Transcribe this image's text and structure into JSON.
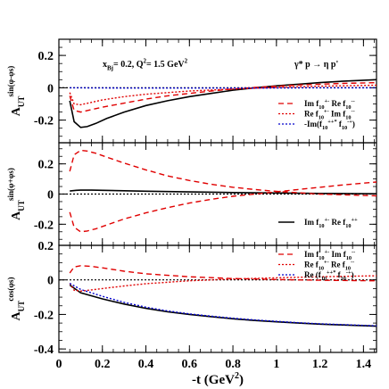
{
  "chart_data": {
    "type": "line",
    "xlabel": "-t (GeV²)",
    "xlim": [
      0,
      1.46
    ],
    "x_ticks": [
      "0",
      "0.2",
      "0.4",
      "0.6",
      "0.8",
      "1",
      "1.2",
      "1.4"
    ],
    "panels": [
      {
        "ylabel": "A_UT^{sin(φ-φs)}",
        "ylim": [
          -0.34,
          0.3
        ],
        "y_ticks": [
          "0.2",
          "0",
          "-0.2"
        ],
        "annotations": [
          "x_Bj= 0.2,  Q²= 1.5 GeV²",
          "γ* p → η p'"
        ],
        "series": [
          {
            "name": "",
            "color": "#000000",
            "dash": "solid",
            "x": [
              0.05,
              0.07,
              0.1,
              0.13,
              0.17,
              0.22,
              0.3,
              0.4,
              0.5,
              0.6,
              0.7,
              0.8,
              0.9,
              1.0,
              1.1,
              1.2,
              1.3,
              1.46
            ],
            "y": [
              -0.08,
              -0.21,
              -0.245,
              -0.24,
              -0.22,
              -0.19,
              -0.15,
              -0.11,
              -0.08,
              -0.055,
              -0.035,
              -0.015,
              0.0,
              0.012,
              0.022,
              0.032,
              0.04,
              0.05
            ]
          },
          {
            "name": "Im f_{10}^{+-} Re f_{10}^{--}",
            "color": "#e00000",
            "dash": "dashed",
            "x": [
              0.05,
              0.07,
              0.1,
              0.15,
              0.2,
              0.3,
              0.4,
              0.5,
              0.6,
              0.7,
              0.8,
              0.9,
              1.0,
              1.1,
              1.2,
              1.3,
              1.46
            ],
            "y": [
              -0.05,
              -0.14,
              -0.15,
              -0.135,
              -0.12,
              -0.095,
              -0.07,
              -0.05,
              -0.035,
              -0.02,
              -0.008,
              0.002,
              0.01,
              0.017,
              0.022,
              0.027,
              0.032
            ]
          },
          {
            "name": "Re f_{10}^{+-} Im f_{10}^{--}",
            "color": "#e00000",
            "dash": "dotted",
            "x": [
              0.05,
              0.07,
              0.1,
              0.15,
              0.2,
              0.3,
              0.4,
              0.5,
              0.6,
              0.8,
              1.0,
              1.2,
              1.46
            ],
            "y": [
              -0.03,
              -0.1,
              -0.105,
              -0.09,
              -0.075,
              -0.055,
              -0.04,
              -0.03,
              -0.02,
              -0.008,
              0.002,
              0.01,
              0.016
            ]
          },
          {
            "name": "-Im(f_{10}^{++*} f_{10}^{-+})",
            "color": "#0000cc",
            "dash": "dotted",
            "x": [
              0.05,
              0.2,
              0.4,
              0.6,
              0.8,
              1.0,
              1.2,
              1.46
            ],
            "y": [
              0.0,
              -0.001,
              -0.002,
              -0.002,
              -0.002,
              -0.001,
              0.0,
              0.0
            ]
          }
        ]
      },
      {
        "ylabel": "A_UT^{sin(φ+φs)}",
        "ylim": [
          -0.34,
          0.34
        ],
        "y_ticks": [
          "0.2",
          "0",
          "-0.2"
        ],
        "annotations": [],
        "series": [
          {
            "name": "Im f_{10}^{+-} Re f_{10}^{++}",
            "color": "#000000",
            "dash": "solid",
            "x": [
              0.05,
              0.08,
              0.1,
              0.15,
              0.2,
              0.3,
              0.4,
              0.6,
              0.8,
              1.0,
              1.2,
              1.46
            ],
            "y": [
              0.02,
              0.025,
              0.026,
              0.026,
              0.025,
              0.022,
              0.019,
              0.014,
              0.01,
              0.007,
              0.004,
              0.002
            ]
          },
          {
            "name": "",
            "color": "#e00000",
            "dash": "dashed",
            "x": [
              0.05,
              0.07,
              0.1,
              0.13,
              0.17,
              0.22,
              0.3,
              0.4,
              0.5,
              0.6,
              0.7,
              0.8,
              0.9,
              1.0,
              1.1,
              1.2,
              1.3,
              1.46
            ],
            "y": [
              0.15,
              0.26,
              0.29,
              0.285,
              0.27,
              0.245,
              0.205,
              0.16,
              0.12,
              0.09,
              0.065,
              0.045,
              0.03,
              0.018,
              0.008,
              0.0,
              -0.005,
              -0.012
            ]
          },
          {
            "name": "",
            "color": "#e00000",
            "dash": "dashed",
            "x": [
              0.05,
              0.07,
              0.1,
              0.13,
              0.17,
              0.22,
              0.3,
              0.4,
              0.5,
              0.6,
              0.7,
              0.8,
              0.9,
              1.0,
              1.1,
              1.2,
              1.3,
              1.46
            ],
            "y": [
              -0.12,
              -0.22,
              -0.25,
              -0.245,
              -0.23,
              -0.205,
              -0.165,
              -0.125,
              -0.09,
              -0.06,
              -0.035,
              -0.015,
              0.0,
              0.015,
              0.03,
              0.045,
              0.06,
              0.08
            ]
          }
        ]
      },
      {
        "ylabel": "A_UT^{cos(φs)}",
        "ylim": [
          -0.42,
          0.2
        ],
        "y_ticks": [
          "0.2",
          "0",
          "-0.2",
          "-0.4"
        ],
        "annotations": [],
        "series": [
          {
            "name": "",
            "color": "#000000",
            "dash": "solid",
            "x": [
              0.05,
              0.1,
              0.2,
              0.3,
              0.4,
              0.5,
              0.6,
              0.7,
              0.8,
              0.9,
              1.0,
              1.1,
              1.2,
              1.3,
              1.46
            ],
            "y": [
              -0.03,
              -0.075,
              -0.11,
              -0.14,
              -0.165,
              -0.185,
              -0.2,
              -0.213,
              -0.225,
              -0.235,
              -0.243,
              -0.25,
              -0.256,
              -0.261,
              -0.268
            ]
          },
          {
            "name": "Im f_{10}^{+-} Im f_{10}^{--}",
            "color": "#e00000",
            "dash": "dashed",
            "x": [
              0.05,
              0.07,
              0.1,
              0.15,
              0.2,
              0.3,
              0.4,
              0.6,
              0.8,
              1.0,
              1.2,
              1.46
            ],
            "y": [
              0.04,
              0.075,
              0.082,
              0.078,
              0.07,
              0.05,
              0.035,
              0.018,
              0.008,
              0.002,
              -0.002,
              -0.005
            ]
          },
          {
            "name": "Re f_{10}^{+-} Re f_{10}^{--}",
            "color": "#e00000",
            "dash": "dotted",
            "x": [
              0.05,
              0.07,
              0.1,
              0.15,
              0.2,
              0.3,
              0.4,
              0.6,
              0.8,
              1.0,
              1.2,
              1.46
            ],
            "y": [
              -0.02,
              -0.06,
              -0.065,
              -0.058,
              -0.05,
              -0.035,
              -0.022,
              -0.005,
              0.005,
              0.012,
              0.018,
              0.024
            ]
          },
          {
            "name": "Re (f_{10}^{++*} f_{10}^{-+})",
            "color": "#0000cc",
            "dash": "dotted",
            "x": [
              0.05,
              0.1,
              0.2,
              0.3,
              0.4,
              0.5,
              0.6,
              0.7,
              0.8,
              0.9,
              1.0,
              1.1,
              1.2,
              1.3,
              1.46
            ],
            "y": [
              -0.02,
              -0.055,
              -0.095,
              -0.13,
              -0.158,
              -0.18,
              -0.197,
              -0.21,
              -0.222,
              -0.232,
              -0.24,
              -0.248,
              -0.254,
              -0.259,
              -0.266
            ]
          }
        ]
      }
    ]
  }
}
